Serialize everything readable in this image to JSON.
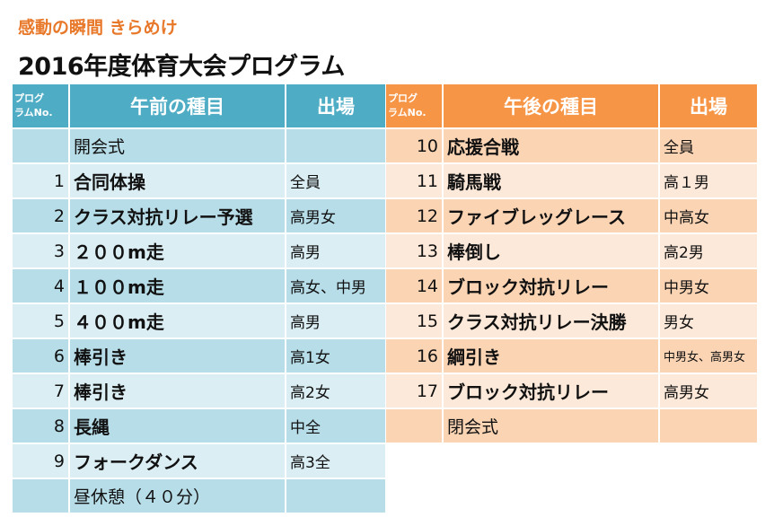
{
  "subtitle": "感動の瞬間 きらめけ",
  "title": "2016年度体育大会プログラム",
  "am": {
    "header": {
      "no_line1": "プログ",
      "no_line2": "ラムNo.",
      "event": "午前の種目",
      "who": "出場"
    },
    "rows": [
      {
        "no": "",
        "event": "開会式",
        "who": "",
        "plain": true
      },
      {
        "no": "1",
        "event": "合同体操",
        "who": "全員"
      },
      {
        "no": "2",
        "event": "クラス対抗リレー予選",
        "who": "高男女"
      },
      {
        "no": "3",
        "event": "２００m走",
        "who": "高男"
      },
      {
        "no": "4",
        "event": "１００m走",
        "who": "高女、中男"
      },
      {
        "no": "5",
        "event": "４００m走",
        "who": "高男"
      },
      {
        "no": "6",
        "event": "棒引き",
        "who": "高1女"
      },
      {
        "no": "7",
        "event": "棒引き",
        "who": "高2女"
      },
      {
        "no": "8",
        "event": "長縄",
        "who": "中全"
      },
      {
        "no": "9",
        "event": "フォークダンス",
        "who": "高3全"
      },
      {
        "no": "",
        "event": "昼休憩（４０分）",
        "who": "",
        "plain": true
      }
    ]
  },
  "pm": {
    "header": {
      "no_line1": "プログ",
      "no_line2": "ラムNo.",
      "event": "午後の種目",
      "who": "出場"
    },
    "rows": [
      {
        "no": "10",
        "event": "応援合戦",
        "who": "全員"
      },
      {
        "no": "11",
        "event": "騎馬戦",
        "who": "高１男"
      },
      {
        "no": "12",
        "event": "ファイブレッグレース",
        "who": "中高女"
      },
      {
        "no": "13",
        "event": "棒倒し",
        "who": "高2男"
      },
      {
        "no": "14",
        "event": "ブロック対抗リレー",
        "who": "中男女"
      },
      {
        "no": "15",
        "event": "クラス対抗リレー決勝",
        "who": "男女"
      },
      {
        "no": "16",
        "event": "綱引き",
        "who": "中男女、高男女",
        "small": true
      },
      {
        "no": "17",
        "event": "ブロック対抗リレー",
        "who": "高男女"
      },
      {
        "no": "",
        "event": "閉会式",
        "who": "",
        "plain": true
      }
    ]
  }
}
